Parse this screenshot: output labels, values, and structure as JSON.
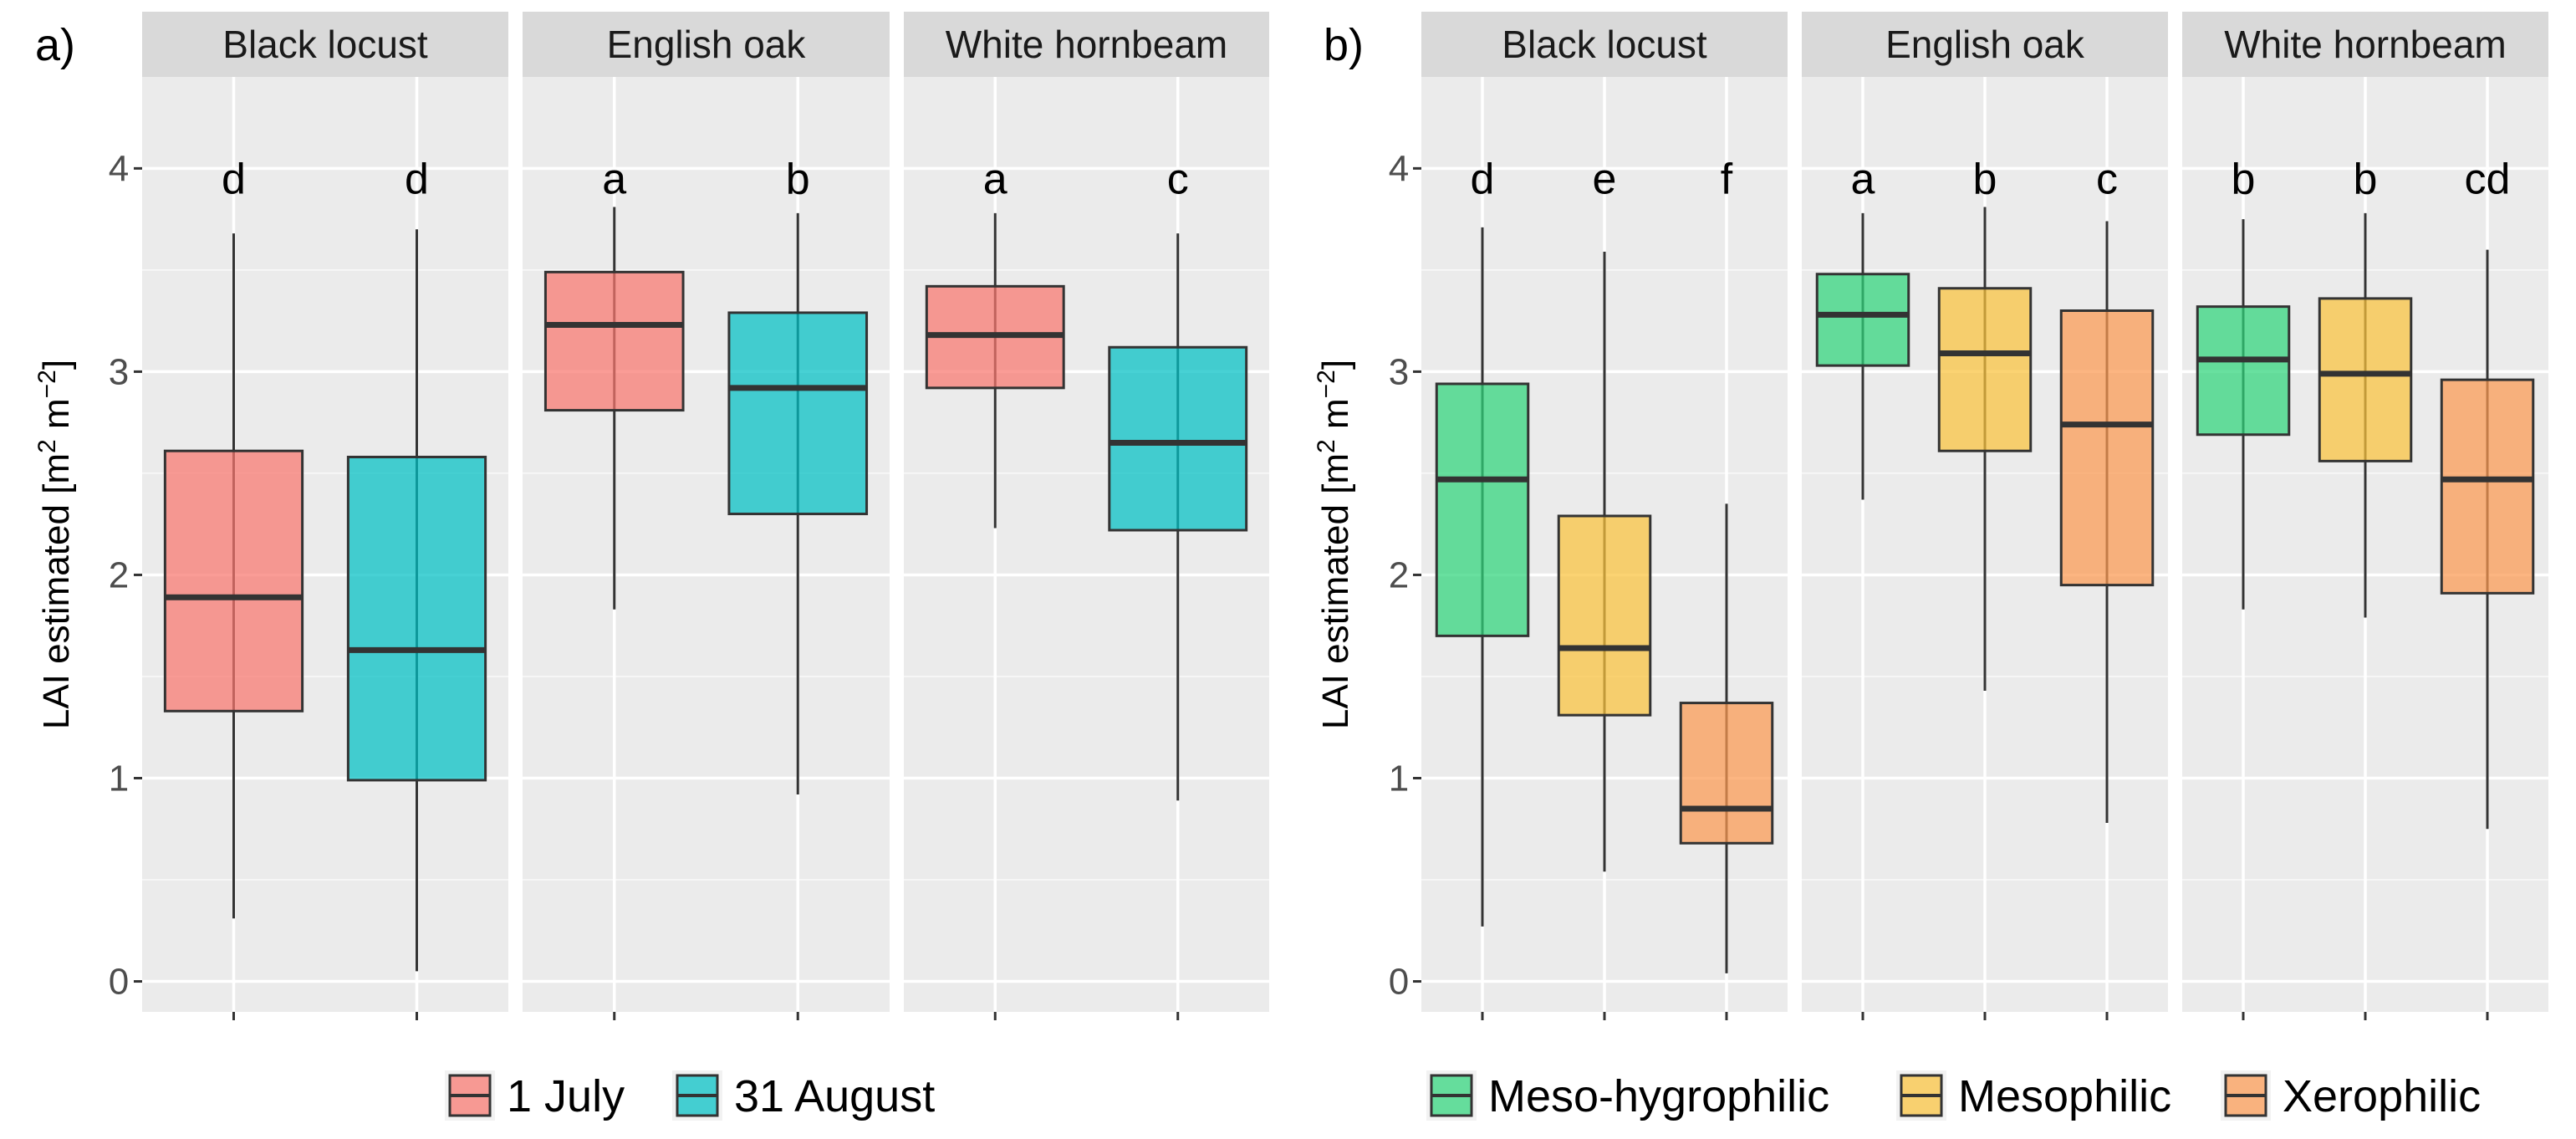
{
  "chart_data": [
    {
      "type": "box",
      "panel_label": "a)",
      "ylabel": "LAI estimated",
      "ylabel_units": {
        "open": "[m",
        "sup1": "2",
        "mid": " m",
        "sup2": "−2",
        "close": "]"
      },
      "ylim": [
        -0.15,
        4.45
      ],
      "yticks": [
        0,
        1,
        2,
        3,
        4
      ],
      "grid": true,
      "legend": {
        "position": "bottom",
        "entries": [
          {
            "name": "1 July",
            "color": "#F8766D"
          },
          {
            "name": "31 August",
            "color": "#00BFC4"
          }
        ]
      },
      "facets": [
        {
          "title": "Black locust",
          "boxes": [
            {
              "group": "1 July",
              "color": "#F8766D",
              "whisker_low": 0.31,
              "q1": 1.33,
              "median": 1.89,
              "q3": 2.61,
              "whisker_high": 3.68,
              "letter": "d"
            },
            {
              "group": "31 August",
              "color": "#00BFC4",
              "whisker_low": 0.05,
              "q1": 0.99,
              "median": 1.63,
              "q3": 2.58,
              "whisker_high": 3.7,
              "letter": "d"
            }
          ]
        },
        {
          "title": "English oak",
          "boxes": [
            {
              "group": "1 July",
              "color": "#F8766D",
              "whisker_low": 1.83,
              "q1": 2.81,
              "median": 3.23,
              "q3": 3.49,
              "whisker_high": 3.81,
              "letter": "a"
            },
            {
              "group": "31 August",
              "color": "#00BFC4",
              "whisker_low": 0.92,
              "q1": 2.3,
              "median": 2.92,
              "q3": 3.29,
              "whisker_high": 3.78,
              "letter": "b"
            }
          ]
        },
        {
          "title": "White hornbeam",
          "boxes": [
            {
              "group": "1 July",
              "color": "#F8766D",
              "whisker_low": 2.23,
              "q1": 2.92,
              "median": 3.18,
              "q3": 3.42,
              "whisker_high": 3.78,
              "letter": "a"
            },
            {
              "group": "31 August",
              "color": "#00BFC4",
              "whisker_low": 0.89,
              "q1": 2.22,
              "median": 2.65,
              "q3": 3.12,
              "whisker_high": 3.68,
              "letter": "c"
            }
          ]
        }
      ]
    },
    {
      "type": "box",
      "panel_label": "b)",
      "ylabel": "LAI estimated",
      "ylabel_units": {
        "open": "[m",
        "sup1": "2",
        "mid": " m",
        "sup2": "−2",
        "close": "]"
      },
      "ylim": [
        -0.15,
        4.45
      ],
      "yticks": [
        0,
        1,
        2,
        3,
        4
      ],
      "grid": true,
      "legend": {
        "position": "bottom",
        "entries": [
          {
            "name": "Meso-hygrophilic",
            "color": "#2ED47A"
          },
          {
            "name": "Mesophilic",
            "color": "#F9C23C"
          },
          {
            "name": "Xerophilic",
            "color": "#FB9950"
          }
        ]
      },
      "facets": [
        {
          "title": "Black locust",
          "boxes": [
            {
              "group": "Meso-hygrophilic",
              "color": "#2ED47A",
              "whisker_low": 0.27,
              "q1": 1.7,
              "median": 2.47,
              "q3": 2.94,
              "whisker_high": 3.71,
              "letter": "d"
            },
            {
              "group": "Mesophilic",
              "color": "#F9C23C",
              "whisker_low": 0.54,
              "q1": 1.31,
              "median": 1.64,
              "q3": 2.29,
              "whisker_high": 3.59,
              "letter": "e"
            },
            {
              "group": "Xerophilic",
              "color": "#FB9950",
              "whisker_low": 0.04,
              "q1": 0.68,
              "median": 0.85,
              "q3": 1.37,
              "whisker_high": 2.35,
              "letter": "f"
            }
          ]
        },
        {
          "title": "English oak",
          "boxes": [
            {
              "group": "Meso-hygrophilic",
              "color": "#2ED47A",
              "whisker_low": 2.37,
              "q1": 3.03,
              "median": 3.28,
              "q3": 3.48,
              "whisker_high": 3.78,
              "letter": "a"
            },
            {
              "group": "Mesophilic",
              "color": "#F9C23C",
              "whisker_low": 1.43,
              "q1": 2.61,
              "median": 3.09,
              "q3": 3.41,
              "whisker_high": 3.81,
              "letter": "b"
            },
            {
              "group": "Xerophilic",
              "color": "#FB9950",
              "whisker_low": 0.78,
              "q1": 1.95,
              "median": 2.74,
              "q3": 3.3,
              "whisker_high": 3.74,
              "letter": "c"
            }
          ]
        },
        {
          "title": "White hornbeam",
          "boxes": [
            {
              "group": "Meso-hygrophilic",
              "color": "#2ED47A",
              "whisker_low": 1.83,
              "q1": 2.69,
              "median": 3.06,
              "q3": 3.32,
              "whisker_high": 3.75,
              "letter": "b"
            },
            {
              "group": "Mesophilic",
              "color": "#F9C23C",
              "whisker_low": 1.79,
              "q1": 2.56,
              "median": 2.99,
              "q3": 3.36,
              "whisker_high": 3.78,
              "letter": "b"
            },
            {
              "group": "Xerophilic",
              "color": "#FB9950",
              "whisker_low": 0.75,
              "q1": 1.91,
              "median": 2.47,
              "q3": 2.96,
              "whisker_high": 3.6,
              "letter": "cd"
            }
          ]
        }
      ]
    }
  ]
}
